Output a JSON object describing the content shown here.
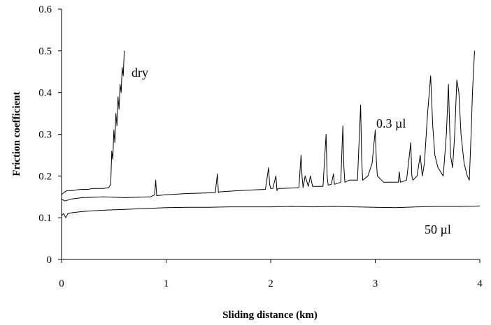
{
  "chart_data": {
    "type": "line",
    "xlabel": "Sliding distance (km)",
    "ylabel": "Friction coefficient",
    "xlim": [
      0,
      4
    ],
    "ylim": [
      0,
      0.6
    ],
    "x_ticks": [
      "0",
      "1",
      "2",
      "3",
      "4"
    ],
    "y_ticks": [
      "0",
      "0.1",
      "0.2",
      "0.3",
      "0.4",
      "0.5",
      "0.6"
    ],
    "grid": false,
    "series": [
      {
        "name": "dry",
        "x": [
          0,
          0.02,
          0.05,
          0.1,
          0.15,
          0.2,
          0.25,
          0.3,
          0.35,
          0.4,
          0.45,
          0.47,
          0.48,
          0.49,
          0.5,
          0.51,
          0.52,
          0.53,
          0.54,
          0.55,
          0.56,
          0.57,
          0.58,
          0.59,
          0.6
        ],
        "y": [
          0.155,
          0.16,
          0.165,
          0.165,
          0.167,
          0.168,
          0.168,
          0.17,
          0.17,
          0.17,
          0.172,
          0.18,
          0.26,
          0.24,
          0.31,
          0.28,
          0.35,
          0.32,
          0.39,
          0.36,
          0.42,
          0.4,
          0.46,
          0.44,
          0.5
        ]
      },
      {
        "name": "0.3 µl",
        "x": [
          0,
          0.03,
          0.1,
          0.2,
          0.4,
          0.6,
          0.85,
          0.89,
          0.9,
          0.91,
          1.0,
          1.2,
          1.47,
          1.49,
          1.5,
          1.51,
          1.7,
          1.95,
          1.98,
          1.99,
          2.0,
          2.02,
          2.05,
          2.06,
          2.07,
          2.1,
          2.27,
          2.29,
          2.3,
          2.31,
          2.33,
          2.36,
          2.38,
          2.4,
          2.5,
          2.53,
          2.54,
          2.55,
          2.58,
          2.6,
          2.61,
          2.67,
          2.69,
          2.7,
          2.71,
          2.75,
          2.83,
          2.86,
          2.87,
          2.88,
          2.93,
          2.97,
          3.0,
          3.01,
          3.02,
          3.08,
          3.15,
          3.22,
          3.23,
          3.24,
          3.3,
          3.34,
          3.35,
          3.36,
          3.4,
          3.43,
          3.45,
          3.47,
          3.5,
          3.53,
          3.55,
          3.57,
          3.6,
          3.65,
          3.68,
          3.7,
          3.72,
          3.74,
          3.76,
          3.78,
          3.8,
          3.82,
          3.85,
          3.88,
          3.9,
          3.92,
          3.93,
          3.95
        ],
        "y": [
          0.145,
          0.14,
          0.145,
          0.148,
          0.15,
          0.148,
          0.15,
          0.155,
          0.19,
          0.153,
          0.155,
          0.158,
          0.16,
          0.205,
          0.16,
          0.162,
          0.165,
          0.168,
          0.22,
          0.18,
          0.17,
          0.17,
          0.2,
          0.165,
          0.17,
          0.17,
          0.172,
          0.25,
          0.2,
          0.172,
          0.2,
          0.175,
          0.2,
          0.175,
          0.175,
          0.3,
          0.2,
          0.178,
          0.18,
          0.205,
          0.18,
          0.185,
          0.32,
          0.22,
          0.185,
          0.19,
          0.19,
          0.37,
          0.24,
          0.19,
          0.2,
          0.23,
          0.31,
          0.24,
          0.2,
          0.185,
          0.185,
          0.185,
          0.21,
          0.185,
          0.19,
          0.28,
          0.2,
          0.19,
          0.2,
          0.25,
          0.2,
          0.23,
          0.35,
          0.44,
          0.32,
          0.25,
          0.22,
          0.2,
          0.3,
          0.42,
          0.25,
          0.22,
          0.3,
          0.43,
          0.4,
          0.3,
          0.23,
          0.2,
          0.19,
          0.32,
          0.4,
          0.5
        ]
      },
      {
        "name": "50 µl",
        "x": [
          0,
          0.02,
          0.04,
          0.06,
          0.1,
          0.2,
          0.4,
          0.6,
          0.8,
          1.0,
          1.2,
          1.4,
          1.6,
          1.8,
          2.0,
          2.2,
          2.4,
          2.6,
          2.8,
          3.0,
          3.2,
          3.4,
          3.6,
          3.8,
          4.0
        ],
        "y": [
          0.105,
          0.11,
          0.1,
          0.11,
          0.112,
          0.115,
          0.118,
          0.12,
          0.122,
          0.124,
          0.125,
          0.125,
          0.126,
          0.126,
          0.126,
          0.127,
          0.126,
          0.127,
          0.126,
          0.125,
          0.124,
          0.126,
          0.127,
          0.127,
          0.128
        ]
      }
    ]
  }
}
